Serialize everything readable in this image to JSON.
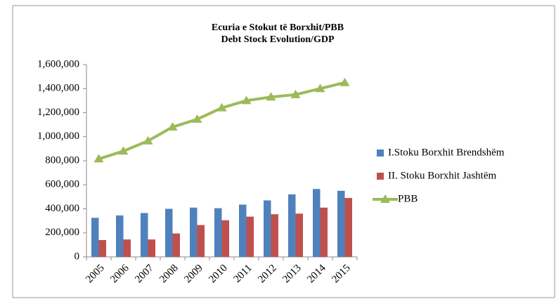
{
  "chart_data": {
    "type": "bar_line",
    "title": "Ecuria e Stokut të Borxhit/PBB",
    "subtitle": "Debt Stock Evolution/GDP",
    "categories": [
      "2005",
      "2006",
      "2007",
      "2008",
      "2009",
      "2010",
      "2011",
      "2012",
      "2013",
      "2014",
      "2015"
    ],
    "series": [
      {
        "name": "I.Stoku Borxhit Brendshëm",
        "type": "bar",
        "color": "#4f81bd",
        "values": [
          325000,
          345000,
          365000,
          400000,
          410000,
          405000,
          435000,
          470000,
          520000,
          565000,
          550000
        ]
      },
      {
        "name": "II. Stoku Borxhit Jashtëm",
        "type": "bar",
        "color": "#c0504d",
        "values": [
          140000,
          145000,
          145000,
          195000,
          265000,
          305000,
          335000,
          355000,
          360000,
          410000,
          490000
        ]
      },
      {
        "name": "PBB",
        "type": "line",
        "color": "#9bbb59",
        "values": [
          815000,
          880000,
          965000,
          1080000,
          1145000,
          1240000,
          1300000,
          1330000,
          1350000,
          1400000,
          1450000
        ]
      }
    ],
    "ylim": [
      0,
      1600000
    ],
    "yticks": [
      0,
      {
        "value": 200000,
        "label": "200,000"
      },
      {
        "value": 400000,
        "label": "400,000"
      },
      {
        "value": 600000,
        "label": "600,000"
      },
      {
        "value": 800000,
        "label": "800,000"
      },
      {
        "value": 1000000,
        "label": "1,000,000"
      },
      {
        "value": 1200000,
        "label": "1,200,000"
      },
      {
        "value": 1400000,
        "label": "1,400,000"
      },
      {
        "value": 1600000,
        "label": "1,600,000"
      }
    ],
    "grid": false,
    "legend": "right"
  }
}
